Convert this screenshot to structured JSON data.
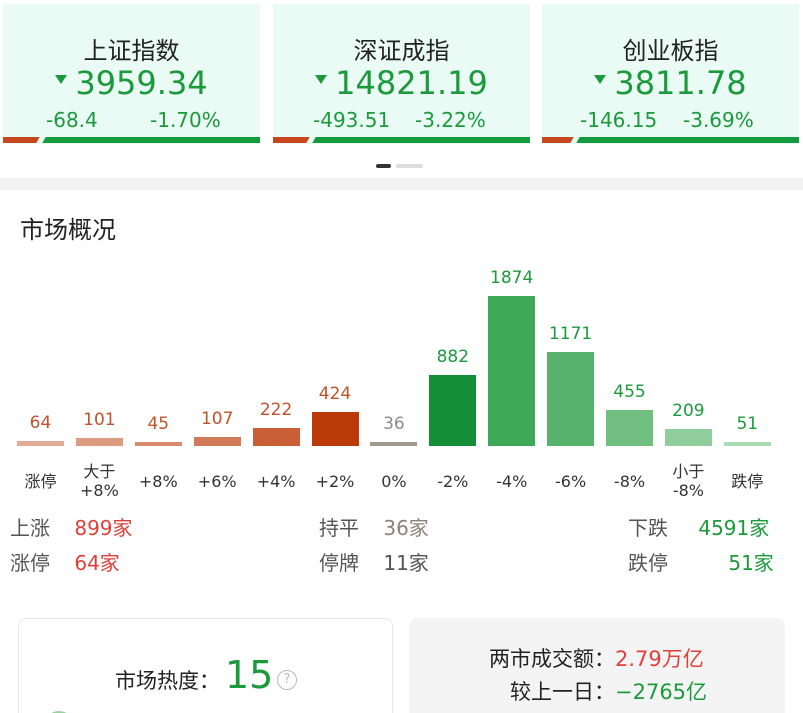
{
  "indices": [
    {
      "name": "上证指数",
      "price": "3959.34",
      "change": "-68.4",
      "pct": "-1.70%",
      "red_fraction": 0.14
    },
    {
      "name": "深证成指",
      "price": "14821.19",
      "change": "-493.51",
      "pct": "-3.22%",
      "red_fraction": 0.14
    },
    {
      "name": "创业板指",
      "price": "3811.78",
      "change": "-146.15",
      "pct": "-3.69%",
      "red_fraction": 0.12
    }
  ],
  "carousel": {
    "active_page": 1,
    "page_count": 2
  },
  "section_title": "市场概况",
  "chart_data": {
    "type": "bar",
    "categories": [
      "涨停",
      "大于\n+8%",
      "+8%",
      "+6%",
      "+4%",
      "+2%",
      "0%",
      "-2%",
      "-4%",
      "-6%",
      "-8%",
      "小于\n-8%",
      "跌停"
    ],
    "values": [
      64,
      101,
      45,
      107,
      222,
      424,
      36,
      882,
      1874,
      1171,
      455,
      209,
      51
    ],
    "value_labels": [
      "64",
      "101",
      "45",
      "107",
      "222",
      "424",
      "36",
      "882",
      "1874",
      "1171",
      "455",
      "209",
      "51"
    ],
    "colors": [
      "#e3ab95",
      "#dd9b80",
      "#d88c6e",
      "#d27a58",
      "#c85f36",
      "#bb3a08",
      "#a09a90",
      "#148f37",
      "#3fa95a",
      "#57b26c",
      "#70bf80",
      "#8fcd9c",
      "#a9dbb4"
    ],
    "label_colors": [
      "#c0522c",
      "#c0522c",
      "#c0522c",
      "#c0522c",
      "#c0522c",
      "#c0522c",
      "#8c8c8c",
      "#1b9a3c",
      "#1b9a3c",
      "#1b9a3c",
      "#1b9a3c",
      "#1b9a3c",
      "#1b9a3c"
    ]
  },
  "stats": {
    "up_label": "上涨",
    "up_value": "899家",
    "flat_label": "持平",
    "flat_value": "36家",
    "down_label": "下跌",
    "down_value": "4591家",
    "limit_up_label": "涨停",
    "limit_up_value": "64家",
    "halt_label": "停牌",
    "halt_value": "11家",
    "limit_down_label": "跌停",
    "limit_down_value": "51家"
  },
  "heat": {
    "label": "市场热度：",
    "value": "15",
    "help_icon": "question-icon"
  },
  "turnover": {
    "label": "两市成交额：",
    "value": "2.79万亿",
    "compare_label": "较上一日：",
    "compare_value": "−2765亿"
  },
  "colors": {
    "up": "#e0403a",
    "down": "#1b9a3c",
    "flat": "#8c8378"
  }
}
